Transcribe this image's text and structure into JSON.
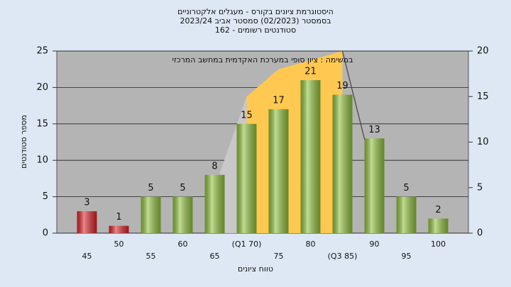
{
  "chart_data": {
    "type": "bar",
    "title": [
      "היסטוגרמת ציונים בקורס - מעגלים אלקטרוניים",
      "בסמסטר  (02/2023)  סמסטר אביב 2023/24",
      "סטודנטים רשומים - 162"
    ],
    "annotation": "במשימה : ציון סופי במערכת האקדמית במחשב המרכזי",
    "x_label": "טווח ציונים",
    "y_label": "מספר סטודנטים",
    "categories": [
      "45",
      "50",
      "55",
      "60",
      "65",
      "(Q1 70)",
      "75",
      "80",
      "(Q3 85)",
      "90",
      "95",
      "100"
    ],
    "series": [
      {
        "type": "bar",
        "colors": [
          "#d8232a",
          "#d8232a",
          "#8fbf3c",
          "#8fbf3c",
          "#8fbf3c",
          "#8fbf3c",
          "#8fbf3c",
          "#8fbf3c",
          "#8fbf3c",
          "#8fbf3c",
          "#8fbf3c",
          "#8fbf3c"
        ],
        "values": [
          3,
          1,
          5,
          5,
          8,
          15,
          17,
          21,
          19,
          13,
          5,
          2
        ]
      },
      {
        "type": "area",
        "axis": "y2",
        "color": "#c8c8c8",
        "values": [
          null,
          null,
          null,
          null,
          5,
          15,
          null,
          null,
          null,
          null,
          null,
          null
        ]
      },
      {
        "type": "area",
        "axis": "y2",
        "color": "#ffc850",
        "values": [
          null,
          null,
          null,
          null,
          null,
          15,
          18,
          19,
          20,
          null,
          null,
          null
        ]
      },
      {
        "type": "line",
        "axis": "y2",
        "color": "#404040",
        "values": [
          null,
          null,
          null,
          null,
          null,
          null,
          null,
          null,
          20,
          6,
          null,
          null
        ]
      }
    ],
    "ylim": [
      0,
      25
    ],
    "yticks": [
      0,
      5,
      10,
      15,
      20,
      25
    ],
    "y2lim": [
      0,
      20
    ],
    "y2ticks": [
      0,
      5,
      10,
      15,
      20
    ],
    "grid": true
  }
}
